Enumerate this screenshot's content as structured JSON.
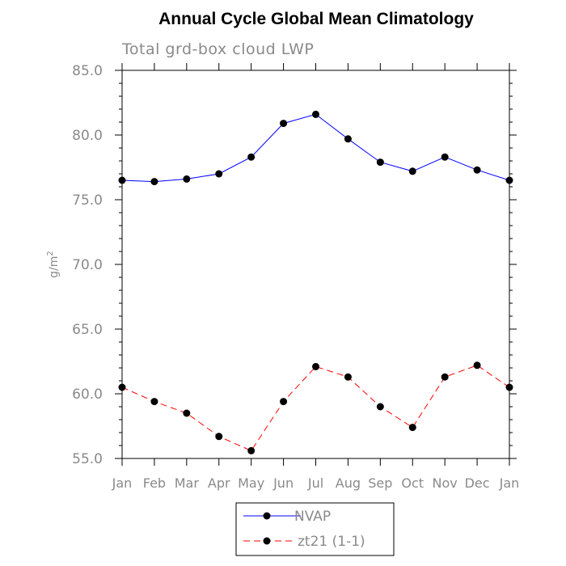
{
  "chart_data": {
    "type": "line",
    "title": "Annual Cycle Global Mean Climatology",
    "subtitle": "Total grd-box cloud LWP",
    "ylabel": "g/m",
    "ylabel_sup": "2",
    "xlabel": "",
    "categories": [
      "Jan",
      "Feb",
      "Mar",
      "Apr",
      "May",
      "Jun",
      "Jul",
      "Aug",
      "Sep",
      "Oct",
      "Nov",
      "Dec",
      "Jan"
    ],
    "ylim": [
      55.0,
      85.0
    ],
    "yticks": [
      "55.0",
      "60.0",
      "65.0",
      "70.0",
      "75.0",
      "80.0",
      "85.0"
    ],
    "ytick_values": [
      55,
      60,
      65,
      70,
      75,
      80,
      85
    ],
    "y_minor_step": 1,
    "grid": false,
    "legend_position": "bottom-center",
    "series": [
      {
        "name": "NVAP",
        "color": "#0000ff",
        "line_style": "solid",
        "marker": "filled-circle",
        "values": [
          76.5,
          76.4,
          76.6,
          77.0,
          78.3,
          80.9,
          81.6,
          79.7,
          77.9,
          77.2,
          78.3,
          77.3,
          76.5
        ]
      },
      {
        "name": "zt21 (1-1)",
        "color": "#ff0000",
        "line_style": "dashed",
        "marker": "filled-circle",
        "values": [
          60.5,
          59.4,
          58.5,
          56.7,
          55.6,
          59.4,
          62.1,
          61.3,
          59.0,
          57.4,
          61.3,
          62.2,
          60.5
        ]
      }
    ]
  }
}
